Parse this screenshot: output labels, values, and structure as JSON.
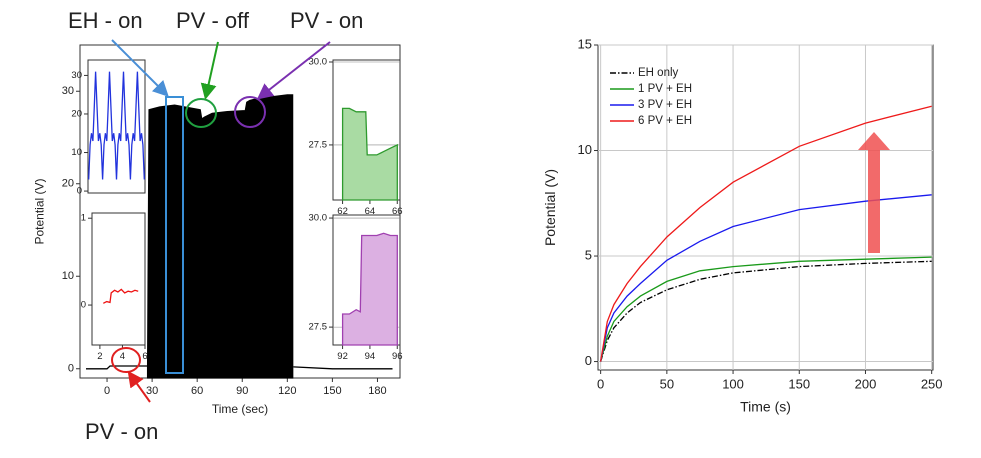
{
  "chart_data": [
    {
      "type": "line",
      "xlabel": "Time (sec)",
      "ylabel": "Potential (V)",
      "xlim": [
        -18,
        195
      ],
      "ylim": [
        -1,
        35
      ],
      "xticks": [
        0,
        30,
        60,
        90,
        120,
        150,
        180
      ],
      "yticks": [
        0,
        10,
        20,
        30
      ],
      "annotations": [
        "EH - on",
        "PV - off",
        "PV - on",
        "PV - on"
      ],
      "series": [
        {
          "color": "#000000",
          "x": [
            -14,
            0,
            2,
            25,
            27,
            75,
            124,
            150,
            190
          ],
          "values": [
            0,
            0,
            0.3,
            0.3,
            0.3,
            null,
            0.2,
            0,
            0
          ]
        },
        {
          "color": "#000000",
          "fill": "#000000",
          "x": [
            27,
            28,
            35,
            45,
            55,
            62,
            63,
            65,
            70,
            80,
            92,
            93,
            95,
            100,
            110,
            120,
            123.5,
            123.6
          ],
          "values": [
            0,
            28,
            28.3,
            28.5,
            28.2,
            28,
            27,
            27.2,
            27.6,
            27.8,
            27.9,
            28.8,
            29,
            29.2,
            29.4,
            29.6,
            29.6,
            0
          ]
        }
      ]
    },
    {
      "type": "line",
      "ylim": [
        -0.5,
        34
      ],
      "yticks": [
        0,
        10,
        20,
        30
      ],
      "series": [
        {
          "color": "#2233dd",
          "values": [
            3,
            12,
            15,
            13,
            22,
            31,
            22,
            13,
            15,
            12,
            3,
            12,
            15,
            13,
            22,
            31,
            22,
            13,
            15,
            12,
            3,
            12,
            15,
            13,
            22,
            31,
            22,
            13,
            15,
            12,
            3,
            12,
            15,
            13,
            22,
            31,
            22,
            13,
            15,
            12,
            3
          ]
        }
      ]
    },
    {
      "type": "line",
      "xlim": [
        1.3,
        6
      ],
      "ylim": [
        -0.46,
        1.06
      ],
      "xticks": [
        2,
        4,
        6
      ],
      "yticks": [
        0,
        1
      ],
      "series": [
        {
          "color": "#ee1111",
          "x": [
            2.3,
            2.6,
            2.9,
            3.0,
            3.3,
            3.6,
            3.9,
            4.2,
            4.5,
            4.8,
            5.1,
            5.4
          ],
          "values": [
            0.02,
            0.04,
            0.03,
            0.14,
            0.17,
            0.15,
            0.18,
            0.14,
            0.16,
            0.15,
            0.17,
            0.16
          ]
        }
      ]
    },
    {
      "type": "line",
      "xlim": [
        61.3,
        66.2
      ],
      "ylim": [
        25.84,
        30.06
      ],
      "xticks": [
        62,
        64,
        66
      ],
      "yticks": [
        27.5,
        {
          "value": 30,
          "label": "30.0"
        }
      ],
      "series": [
        {
          "color": "#2e9a2e",
          "fill": "#a9dba3",
          "x": [
            62,
            62.5,
            63,
            63.5,
            63.7,
            63.8,
            64.5,
            65,
            65.5,
            66
          ],
          "values": [
            28.6,
            28.6,
            28.5,
            28.5,
            28.5,
            27.2,
            27.2,
            27.3,
            27.4,
            27.5
          ]
        }
      ]
    },
    {
      "type": "line",
      "xlim": [
        91.3,
        96.2
      ],
      "ylim": [
        27.09,
        30.07
      ],
      "xticks": [
        92,
        94,
        96
      ],
      "yticks": [
        27.5,
        {
          "value": 30,
          "label": "30.0"
        }
      ],
      "series": [
        {
          "color": "#a040b0",
          "fill": "#dcb0e2",
          "x": [
            92,
            92.5,
            93,
            93.3,
            93.4,
            94,
            94.5,
            95,
            95.5,
            96
          ],
          "values": [
            27.8,
            27.8,
            27.9,
            27.85,
            29.6,
            29.6,
            29.6,
            29.65,
            29.6,
            29.6
          ]
        }
      ]
    },
    {
      "type": "line",
      "xlabel": "Time (s)",
      "ylabel": "Potential (V)",
      "grid": true,
      "legend": "upper left",
      "xlim": [
        -2,
        251
      ],
      "ylim": [
        -0.4,
        15
      ],
      "xticks": [
        0,
        50,
        100,
        150,
        200,
        250
      ],
      "yticks": [
        0,
        5,
        10,
        15
      ],
      "series": [
        {
          "name": "EH only",
          "color": "#000000",
          "dash": "dashdot",
          "x": [
            0,
            5,
            10,
            20,
            30,
            50,
            75,
            100,
            150,
            200,
            250
          ],
          "values": [
            0,
            1.0,
            1.6,
            2.3,
            2.8,
            3.4,
            3.9,
            4.2,
            4.5,
            4.65,
            4.75
          ]
        },
        {
          "name": "1 PV + EH",
          "color": "#1a9a1a",
          "x": [
            0,
            5,
            10,
            20,
            30,
            50,
            75,
            100,
            150,
            200,
            250
          ],
          "values": [
            0,
            1.2,
            1.9,
            2.6,
            3.1,
            3.8,
            4.3,
            4.5,
            4.75,
            4.85,
            4.95
          ]
        },
        {
          "name": "3 PV + EH",
          "color": "#1a1aee",
          "x": [
            0,
            5,
            10,
            20,
            30,
            50,
            75,
            100,
            150,
            200,
            250
          ],
          "values": [
            0,
            1.6,
            2.3,
            3.1,
            3.7,
            4.8,
            5.7,
            6.4,
            7.2,
            7.6,
            7.9
          ]
        },
        {
          "name": "6 PV + EH",
          "color": "#ee1a1a",
          "x": [
            0,
            5,
            10,
            20,
            30,
            50,
            75,
            100,
            150,
            200,
            250
          ],
          "values": [
            0,
            1.9,
            2.7,
            3.7,
            4.5,
            5.9,
            7.3,
            8.5,
            10.2,
            11.3,
            12.1
          ]
        }
      ]
    }
  ]
}
